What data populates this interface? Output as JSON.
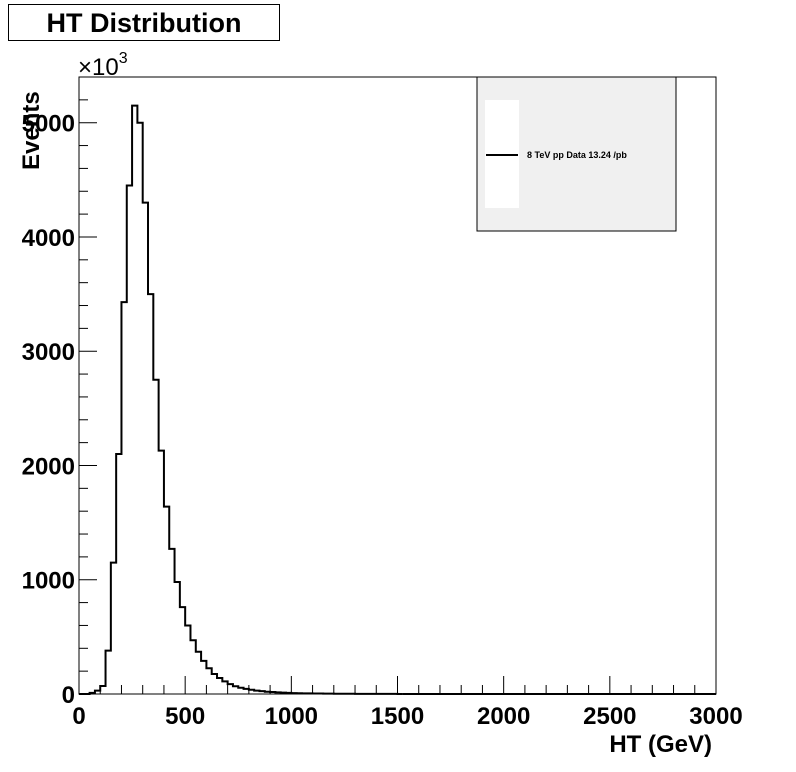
{
  "chart_data": {
    "type": "histogram",
    "title": "HT Distribution",
    "xlabel": "HT (GeV)",
    "ylabel": "Events",
    "y_multiplier": "×10",
    "y_multiplier_exp": "3",
    "xlim": [
      0,
      3000
    ],
    "ylim": [
      0,
      5400
    ],
    "x_ticks": [
      0,
      500,
      1000,
      1500,
      2000,
      2500,
      3000
    ],
    "y_ticks": [
      0,
      1000,
      2000,
      3000,
      4000,
      5000
    ],
    "grid": false,
    "legend_position": "top-right",
    "series": [
      {
        "name": "8 TeV pp Data 13.24 /pb",
        "color": "#000000",
        "bin_width": 25,
        "bin_start": 0,
        "values": [
          0,
          0,
          10,
          30,
          70,
          380,
          1150,
          2100,
          3430,
          4450,
          5150,
          5000,
          4300,
          3500,
          2750,
          2130,
          1640,
          1270,
          980,
          760,
          600,
          470,
          370,
          290,
          225,
          175,
          140,
          110,
          86,
          68,
          55,
          45,
          37,
          30,
          25,
          20,
          17,
          14,
          12,
          10,
          8,
          7,
          6,
          5,
          4,
          4,
          3,
          3,
          2,
          2,
          2,
          2,
          1,
          1,
          1,
          1,
          1,
          1,
          1,
          1,
          0
        ]
      }
    ]
  }
}
